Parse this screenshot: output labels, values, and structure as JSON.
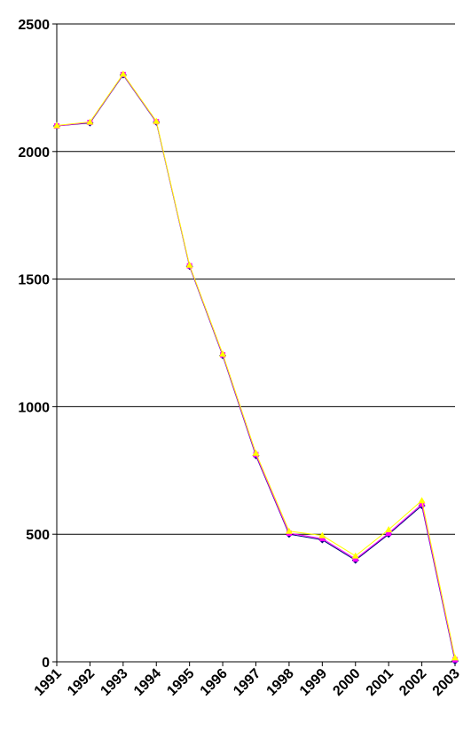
{
  "chart_data": {
    "type": "line",
    "categories": [
      "1991",
      "1992",
      "1993",
      "1994",
      "1995",
      "1996",
      "1997",
      "1998",
      "1999",
      "2000",
      "2001",
      "2002",
      "2003"
    ],
    "series": [
      {
        "color": "#000080",
        "marker": "diamond",
        "values": [
          2100,
          2112,
          2300,
          2115,
          1550,
          1200,
          808,
          500,
          478,
          398,
          500,
          612,
          3
        ]
      },
      {
        "color": "#ff00ff",
        "marker": "square",
        "values": [
          2100,
          2114,
          2302,
          2117,
          1552,
          1203,
          812,
          504,
          483,
          403,
          504,
          618,
          8
        ]
      },
      {
        "color": "#ffff00",
        "marker": "triangle",
        "values": [
          2102,
          2116,
          2304,
          2119,
          1555,
          1207,
          818,
          512,
          495,
          415,
          518,
          632,
          16
        ]
      }
    ],
    "ylim": [
      0,
      2500
    ],
    "yticks": [
      0,
      500,
      1000,
      1500,
      2000,
      2500
    ],
    "grid": true
  }
}
